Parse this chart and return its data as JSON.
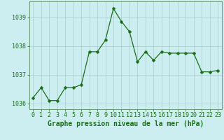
{
  "x": [
    0,
    1,
    2,
    3,
    4,
    5,
    6,
    7,
    8,
    9,
    10,
    11,
    12,
    13,
    14,
    15,
    16,
    17,
    18,
    19,
    20,
    21,
    22,
    23
  ],
  "y": [
    1036.2,
    1036.55,
    1036.1,
    1036.1,
    1036.55,
    1036.55,
    1036.65,
    1037.8,
    1037.8,
    1038.2,
    1039.3,
    1038.85,
    1038.5,
    1037.45,
    1037.8,
    1037.5,
    1037.8,
    1037.75,
    1037.75,
    1037.75,
    1037.75,
    1037.1,
    1037.1,
    1037.15
  ],
  "line_color": "#1a6e1a",
  "marker": "D",
  "marker_size": 2.5,
  "bg_color": "#cceef0",
  "grid_color": "#aacccc",
  "xlabel": "Graphe pression niveau de la mer (hPa)",
  "xlabel_color": "#1a6e1a",
  "tick_color": "#1a6e1a",
  "ylim": [
    1035.8,
    1039.55
  ],
  "yticks": [
    1036,
    1037,
    1038,
    1039
  ],
  "xlim": [
    -0.5,
    23.5
  ],
  "xticks": [
    0,
    1,
    2,
    3,
    4,
    5,
    6,
    7,
    8,
    9,
    10,
    11,
    12,
    13,
    14,
    15,
    16,
    17,
    18,
    19,
    20,
    21,
    22,
    23
  ],
  "spine_color": "#5a8a5a",
  "xlabel_fontsize": 7.0,
  "tick_fontsize": 6.0,
  "linewidth": 0.9
}
